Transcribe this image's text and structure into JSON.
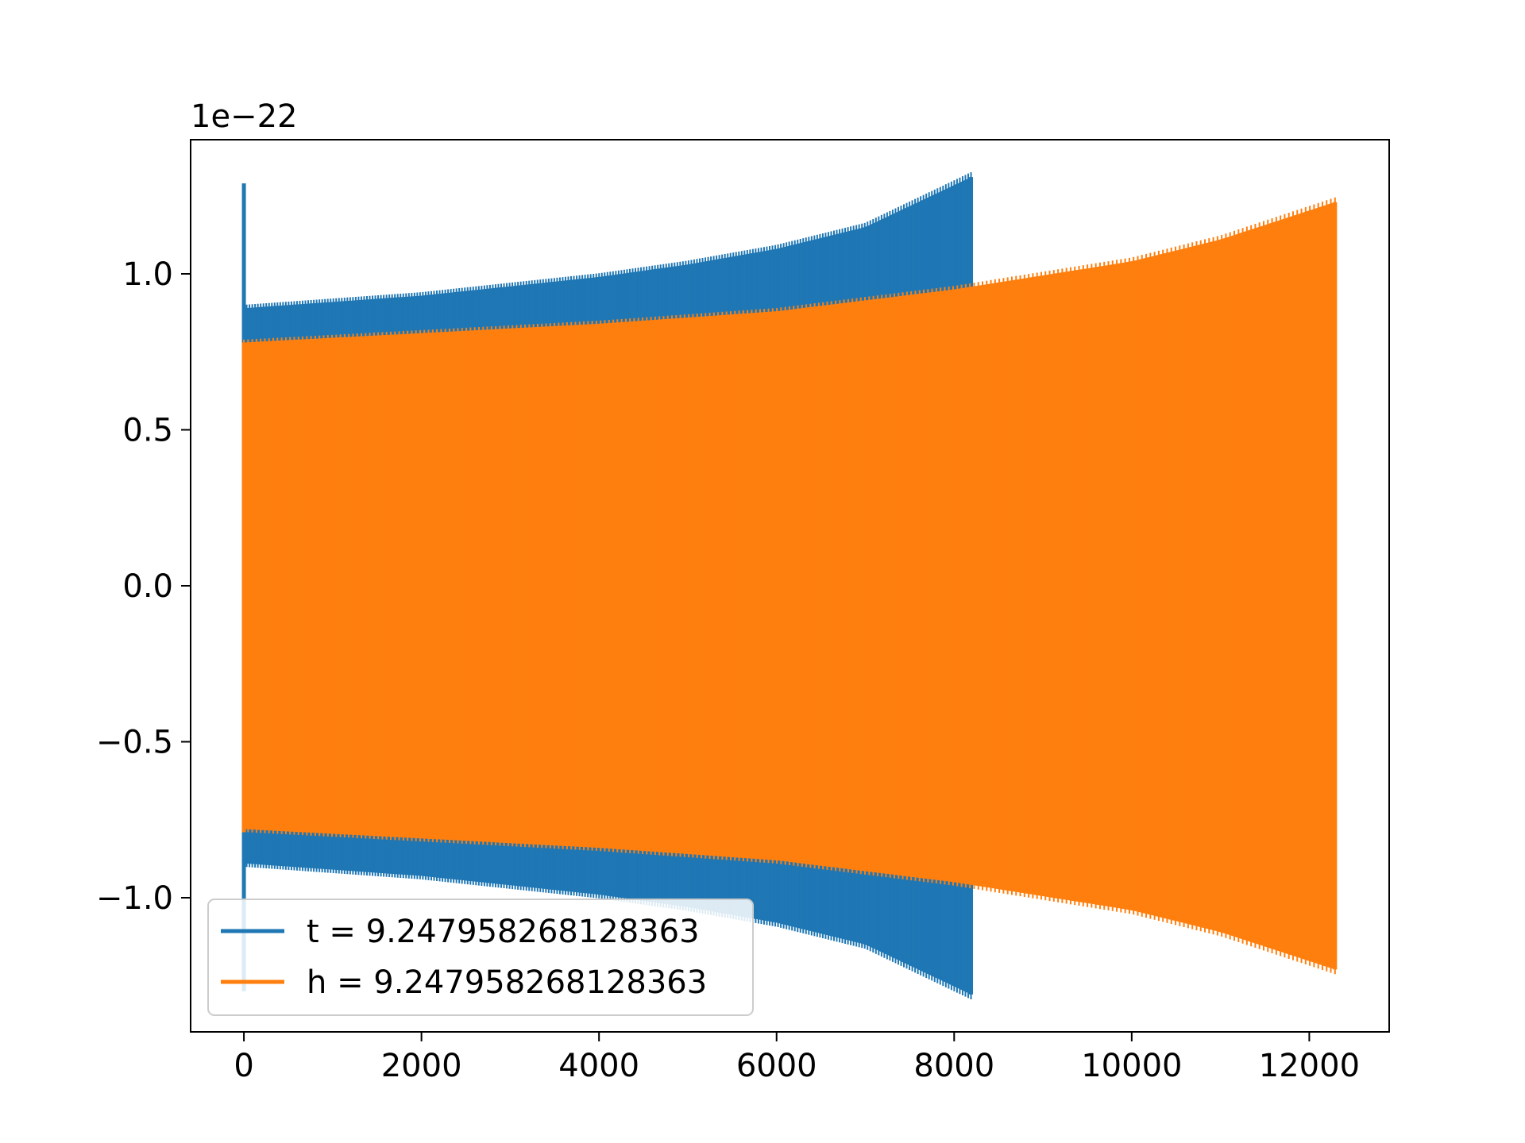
{
  "chart_data": {
    "type": "line",
    "title": "",
    "xlabel": "",
    "ylabel": "",
    "y_offset_label": "1e−22",
    "xlim": [
      -600,
      12900
    ],
    "ylim": [
      -1.43,
      1.43
    ],
    "y_scale_factor": 1e-22,
    "xticks": [
      0,
      2000,
      4000,
      6000,
      8000,
      10000,
      12000
    ],
    "xtick_labels": [
      "0",
      "2000",
      "4000",
      "6000",
      "8000",
      "10000",
      "12000"
    ],
    "yticks": [
      -1.0,
      -0.5,
      0.0,
      0.5,
      1.0
    ],
    "ytick_labels": [
      "−1.0",
      "−0.5",
      "0.0",
      "0.5",
      "1.0"
    ],
    "grid": false,
    "legend_position": "lower-left",
    "series": [
      {
        "name": "t = 9.247958268128363",
        "color": "#1f77b4",
        "x_end": 8190,
        "envelope": [
          {
            "x": 0,
            "amp": 0.89
          },
          {
            "x": 1000,
            "amp": 0.91
          },
          {
            "x": 2000,
            "amp": 0.93
          },
          {
            "x": 3000,
            "amp": 0.96
          },
          {
            "x": 4000,
            "amp": 0.99
          },
          {
            "x": 5000,
            "amp": 1.03
          },
          {
            "x": 6000,
            "amp": 1.08
          },
          {
            "x": 7000,
            "amp": 1.15
          },
          {
            "x": 8190,
            "amp": 1.31
          }
        ],
        "initial_spike": {
          "x": 0,
          "max": 1.29,
          "min": -1.3
        }
      },
      {
        "name": "h = 9.247958268128363",
        "color": "#ff7f0e",
        "x_end": 12290,
        "envelope": [
          {
            "x": 0,
            "amp": 0.78
          },
          {
            "x": 2000,
            "amp": 0.81
          },
          {
            "x": 4000,
            "amp": 0.84
          },
          {
            "x": 6000,
            "amp": 0.88
          },
          {
            "x": 8000,
            "amp": 0.95
          },
          {
            "x": 10000,
            "amp": 1.04
          },
          {
            "x": 11000,
            "amp": 1.11
          },
          {
            "x": 12290,
            "amp": 1.23
          }
        ],
        "initial_spike": {
          "x": 0,
          "max": 0.78,
          "min": -0.79
        }
      }
    ]
  }
}
